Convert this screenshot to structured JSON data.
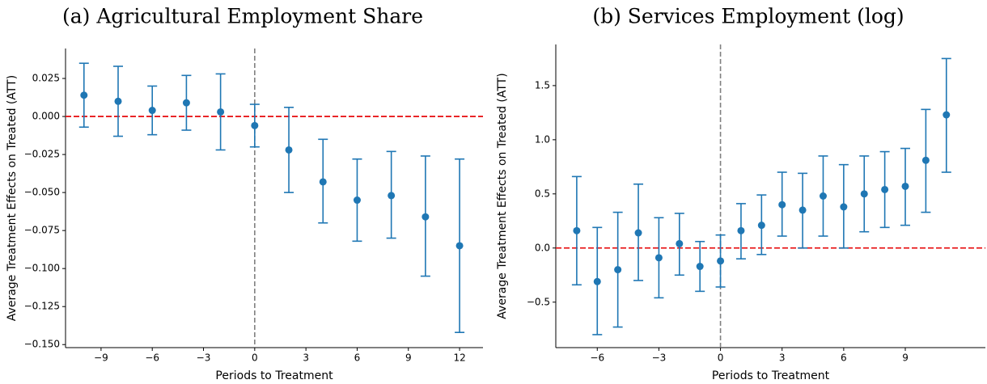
{
  "chart_data": [
    {
      "type": "errorbar",
      "title": "(a) Agricultural Employment Share",
      "xlabel": "Periods to Treatment",
      "ylabel": "Average Treatment Effects on Treated (ATT)",
      "x": [
        -10,
        -8,
        -6,
        -4,
        -2,
        0,
        2,
        4,
        6,
        8,
        10,
        12
      ],
      "values": [
        0.014,
        0.01,
        0.004,
        0.009,
        0.003,
        -0.006,
        -0.022,
        -0.043,
        -0.055,
        -0.052,
        -0.066,
        -0.085
      ],
      "lower": [
        -0.007,
        -0.013,
        -0.012,
        -0.009,
        -0.022,
        -0.02,
        -0.05,
        -0.07,
        -0.082,
        -0.08,
        -0.105,
        -0.142
      ],
      "upper": [
        0.035,
        0.033,
        0.02,
        0.027,
        0.028,
        0.008,
        0.006,
        -0.015,
        -0.028,
        -0.023,
        -0.026,
        -0.028
      ],
      "color": "#1f77b4",
      "hline": 0,
      "hline_color": "#e8191b",
      "vline": 0,
      "vline_color": "#808080",
      "xlim": [
        -11.08,
        13.37
      ],
      "ylim": [
        -0.152,
        0.0447
      ],
      "xticks": [
        {
          "value": -9,
          "label": "−9"
        },
        {
          "value": -6,
          "label": "−6"
        },
        {
          "value": -3,
          "label": "−3"
        },
        0,
        3,
        6,
        9,
        12
      ],
      "yticks": [
        {
          "value": -0.15,
          "label": "−0.150"
        },
        {
          "value": -0.125,
          "label": "−0.125"
        },
        {
          "value": -0.1,
          "label": "−0.100"
        },
        {
          "value": -0.075,
          "label": "−0.075"
        },
        {
          "value": -0.05,
          "label": "−0.050"
        },
        {
          "value": -0.025,
          "label": "−0.025"
        },
        {
          "value": 0,
          "label": "0.000"
        },
        0.025
      ]
    },
    {
      "type": "errorbar",
      "title": "(b) Services Employment (log)",
      "xlabel": "Periods to Treatment",
      "ylabel": "Average Treatment Effects on Treated (ATT)",
      "x": [
        -7,
        -6,
        -5,
        -4,
        -3,
        -2,
        -1,
        0,
        1,
        2,
        3,
        4,
        5,
        6,
        7,
        8,
        9,
        10,
        11
      ],
      "values": [
        0.16,
        -0.31,
        -0.2,
        0.14,
        -0.09,
        0.04,
        -0.17,
        -0.12,
        0.16,
        0.21,
        0.4,
        0.35,
        0.48,
        0.38,
        0.5,
        0.54,
        0.57,
        0.81,
        1.23
      ],
      "lower": [
        -0.34,
        -0.8,
        -0.73,
        -0.3,
        -0.46,
        -0.25,
        -0.4,
        -0.36,
        -0.1,
        -0.06,
        0.11,
        0.0,
        0.11,
        0.0,
        0.15,
        0.19,
        0.21,
        0.33,
        0.7
      ],
      "upper": [
        0.66,
        0.19,
        0.33,
        0.59,
        0.28,
        0.32,
        0.06,
        0.12,
        0.41,
        0.49,
        0.7,
        0.69,
        0.85,
        0.77,
        0.85,
        0.89,
        0.92,
        1.28,
        1.75
      ],
      "color": "#1f77b4",
      "hline": 0,
      "hline_color": "#e8191b",
      "vline": 0,
      "vline_color": "#808080",
      "xlim": [
        -8.02,
        12.9
      ],
      "ylim": [
        -0.92,
        1.88
      ],
      "xticks": [
        {
          "value": -6,
          "label": "−6"
        },
        {
          "value": -3,
          "label": "−3"
        },
        0,
        3,
        6,
        9
      ],
      "yticks": [
        {
          "value": -0.5,
          "label": "−0.5"
        },
        {
          "value": 0,
          "label": "0.0"
        },
        0.5,
        {
          "value": 1,
          "label": "1.0"
        },
        1.5
      ]
    }
  ]
}
